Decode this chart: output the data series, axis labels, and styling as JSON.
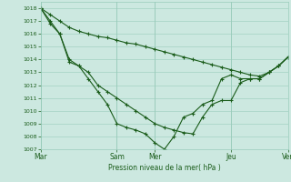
{
  "background_color": "#cce8e0",
  "plot_bg_color": "#cce8e0",
  "grid_color": "#99ccbb",
  "line_color": "#1a5c1a",
  "marker_color": "#1a5c1a",
  "xlabel": "Pression niveau de la mer( hPa )",
  "ylim": [
    1007,
    1018.5
  ],
  "yticks": [
    1007,
    1008,
    1009,
    1010,
    1011,
    1012,
    1013,
    1014,
    1015,
    1016,
    1017,
    1018
  ],
  "xtick_labels": [
    "Mar",
    "Sam",
    "Mer",
    "Jeu",
    "Ven"
  ],
  "xtick_positions": [
    0,
    4,
    6,
    10,
    13
  ],
  "x_total": 13,
  "line1_x": [
    0,
    0.5,
    1,
    1.5,
    2,
    2.5,
    3,
    3.5,
    4,
    4.5,
    5,
    5.5,
    6,
    6.5,
    7,
    7.5,
    8,
    8.5,
    9,
    9.5,
    10,
    10.5,
    11,
    11.5,
    12,
    12.5,
    13
  ],
  "line1_y": [
    1018,
    1017.5,
    1017,
    1016.5,
    1016.2,
    1016,
    1015.8,
    1015.7,
    1015.5,
    1015.3,
    1015.2,
    1015.0,
    1014.8,
    1014.6,
    1014.4,
    1014.2,
    1014.0,
    1013.8,
    1013.6,
    1013.4,
    1013.2,
    1013.0,
    1012.8,
    1012.7,
    1013.0,
    1013.5,
    1014.2
  ],
  "line2_x": [
    0,
    0.5,
    1,
    1.5,
    2,
    2.5,
    3,
    3.5,
    4,
    4.5,
    5,
    5.5,
    6,
    6.5,
    7,
    7.5,
    8,
    8.5,
    9,
    9.5,
    10,
    10.5,
    11,
    11.5,
    12,
    12.5,
    13
  ],
  "line2_y": [
    1018,
    1017,
    1016,
    1014,
    1013.5,
    1013,
    1012,
    1011.5,
    1011,
    1010.5,
    1010,
    1009.5,
    1009,
    1008.7,
    1008.5,
    1008.3,
    1008.2,
    1009.5,
    1010.5,
    1010.8,
    1010.8,
    1012.2,
    1012.5,
    1012.5,
    1013.0,
    1013.5,
    1014.2
  ],
  "line3_x": [
    0,
    0.5,
    1,
    1.5,
    2,
    2.5,
    3,
    3.5,
    4,
    4.5,
    5,
    5.5,
    6,
    6.5,
    7,
    7.5,
    8,
    8.5,
    9,
    9.5,
    10,
    10.5,
    11,
    11.5,
    12,
    12.5,
    13
  ],
  "line3_y": [
    1018,
    1016.8,
    1016,
    1013.8,
    1013.5,
    1012.5,
    1011.5,
    1010.5,
    1009,
    1008.7,
    1008.5,
    1008.2,
    1007.5,
    1007,
    1008,
    1009.5,
    1009.8,
    1010.5,
    1010.8,
    1012.5,
    1012.8,
    1012.5,
    1012.5,
    1012.5,
    1013.0,
    1013.5,
    1014.2
  ]
}
